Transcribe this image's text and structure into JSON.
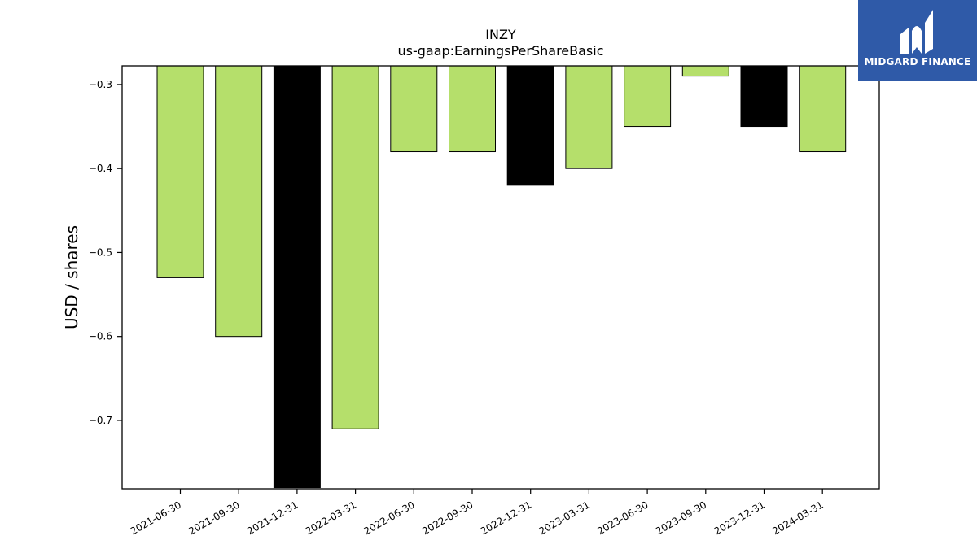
{
  "chart_data": {
    "type": "bar",
    "title": "INZY",
    "subtitle": "us-gaap:EarningsPerShareBasic",
    "xlabel": "",
    "ylabel": "USD / shares",
    "categories": [
      "2021-06-30",
      "2021-09-30",
      "2021-12-31",
      "2022-03-31",
      "2022-06-30",
      "2022-09-30",
      "2022-12-31",
      "2023-03-31",
      "2023-06-30",
      "2023-09-30",
      "2023-12-31",
      "2024-03-31"
    ],
    "values": [
      -0.53,
      -0.6,
      -0.78,
      -0.71,
      -0.38,
      -0.38,
      -0.42,
      -0.4,
      -0.35,
      -0.29,
      -0.35,
      -0.38
    ],
    "bar_colors": [
      "#b5df6b",
      "#b5df6b",
      "#000000",
      "#b5df6b",
      "#b5df6b",
      "#b5df6b",
      "#000000",
      "#b5df6b",
      "#b5df6b",
      "#b5df6b",
      "#000000",
      "#b5df6b"
    ],
    "ylim": [
      -0.7814,
      -0.2778
    ],
    "yticks": [
      -0.3,
      -0.4,
      -0.5,
      -0.6,
      -0.7
    ],
    "ytick_labels": [
      "−0.3",
      "−0.4",
      "−0.5",
      "−0.6",
      "−0.7"
    ],
    "grid": false,
    "legend": "none"
  },
  "logo": {
    "text": "MIDGARD FINANCE",
    "color": "#2f5aa8"
  }
}
